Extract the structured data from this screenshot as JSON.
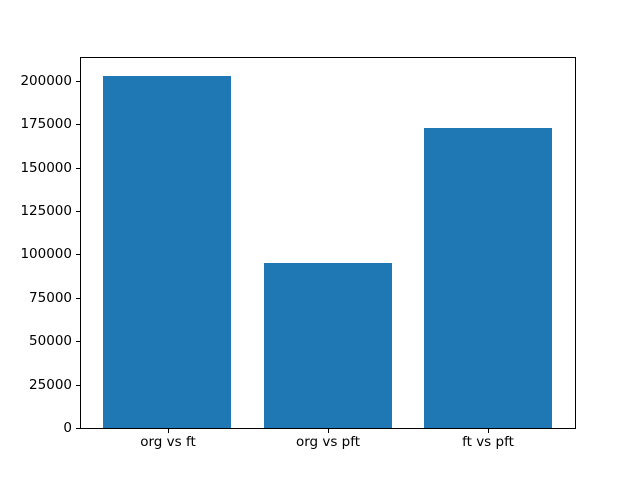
{
  "chart_data": {
    "type": "bar",
    "title": "",
    "xlabel": "",
    "ylabel": "",
    "categories": [
      "org vs ft",
      "org vs pft",
      "ft vs pft"
    ],
    "values": [
      203000,
      95300,
      172800
    ],
    "ylim": [
      0,
      213150
    ],
    "yticks": [
      0,
      25000,
      50000,
      75000,
      100000,
      125000,
      150000,
      175000,
      200000
    ],
    "ytick_labels": [
      "0",
      "25000",
      "50000",
      "75000",
      "100000",
      "125000",
      "150000",
      "175000",
      "200000"
    ],
    "bar_color": "#1f77b4",
    "axis_color": "#000000",
    "background_color": "#ffffff",
    "bar_width_fraction": 0.8,
    "grid": false,
    "legend": "none"
  }
}
